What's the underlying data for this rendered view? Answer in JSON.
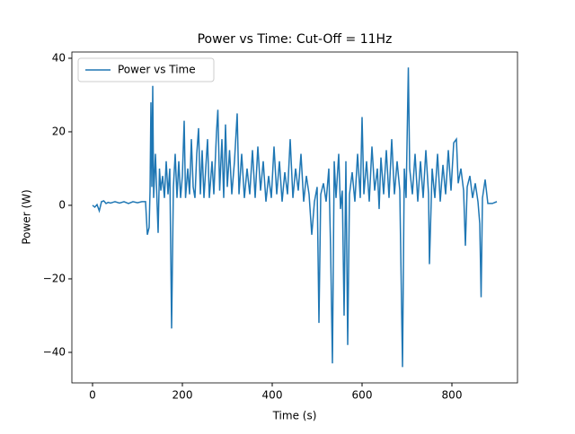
{
  "chart_data": {
    "type": "line",
    "title": "Power vs Time: Cut-Off = 11Hz",
    "x_label": "Time (s)",
    "y_label": "Power (W)",
    "xlim": [
      -46,
      946
    ],
    "ylim": [
      -48.3,
      41.7
    ],
    "xticks": [
      0,
      200,
      400,
      600,
      800
    ],
    "yticks": [
      {
        "value": -40,
        "label": "−40"
      },
      {
        "value": -20,
        "label": "−20"
      },
      0,
      20,
      40
    ],
    "legend": "upper left",
    "grid": false,
    "x": [
      0,
      5,
      10,
      15,
      20,
      25,
      30,
      35,
      40,
      50,
      60,
      70,
      80,
      90,
      100,
      110,
      118,
      122,
      126,
      128,
      130,
      132,
      134,
      136,
      140,
      143,
      146,
      149,
      152,
      156,
      160,
      164,
      168,
      172,
      176,
      180,
      184,
      188,
      192,
      196,
      200,
      204,
      207,
      212,
      216,
      220,
      224,
      228,
      232,
      236,
      240,
      244,
      248,
      252,
      256,
      260,
      266,
      270,
      276,
      279,
      283,
      288,
      292,
      296,
      300,
      305,
      310,
      316,
      322,
      326,
      332,
      338,
      344,
      350,
      356,
      362,
      368,
      374,
      380,
      386,
      392,
      398,
      404,
      410,
      416,
      422,
      428,
      434,
      440,
      446,
      452,
      458,
      464,
      470,
      476,
      482,
      488,
      494,
      500,
      504,
      508,
      514,
      520,
      526,
      530,
      534,
      538,
      542,
      548,
      552,
      556,
      560,
      564,
      568,
      572,
      578,
      584,
      590,
      596,
      600,
      604,
      610,
      616,
      622,
      628,
      634,
      638,
      642,
      648,
      654,
      660,
      666,
      672,
      678,
      684,
      690,
      694,
      698,
      703,
      706,
      712,
      718,
      724,
      730,
      736,
      742,
      748,
      750,
      756,
      762,
      768,
      774,
      780,
      786,
      792,
      798,
      804,
      810,
      814,
      820,
      826,
      830,
      834,
      840,
      846,
      852,
      858,
      862,
      865,
      868,
      874,
      880,
      890,
      900
    ],
    "series": [
      {
        "name": "Power vs Time",
        "color": "#1f77b4",
        "values": [
          0,
          -0.5,
          0.2,
          -1.5,
          1,
          1.2,
          0.5,
          0.8,
          0.6,
          1,
          0.6,
          1,
          0.5,
          1,
          0.7,
          1,
          1,
          -8,
          -6,
          4,
          28,
          5,
          32.5,
          2,
          14,
          3,
          -7.5,
          10,
          4,
          8,
          2,
          12,
          3,
          10,
          -33.5,
          5,
          14,
          2,
          12,
          2,
          8,
          23,
          2,
          10,
          3,
          18,
          5,
          2,
          14,
          21,
          3,
          15,
          2,
          10,
          18,
          2,
          12,
          3,
          20,
          26,
          4,
          18,
          2,
          22,
          5,
          15,
          3,
          12,
          25,
          3,
          14,
          2,
          10,
          3,
          15,
          2,
          16,
          4,
          12,
          1,
          8,
          2,
          16,
          3,
          12,
          1,
          9,
          3,
          18,
          2,
          10,
          4,
          14,
          1,
          8,
          3,
          -8,
          1,
          5,
          -32,
          3,
          6,
          1,
          10,
          -12,
          -43,
          12,
          2,
          14,
          -1,
          4,
          -30,
          12,
          -38,
          3,
          9,
          1,
          14,
          2,
          24,
          3,
          12,
          1,
          16,
          4,
          10,
          -1,
          13,
          3,
          15,
          2,
          18,
          3,
          12,
          4,
          -44,
          10,
          2,
          37.5,
          10,
          3,
          14,
          1,
          12,
          2,
          15,
          3,
          -16,
          10,
          2,
          14,
          1,
          11,
          3,
          15,
          4,
          17,
          18,
          6,
          10,
          4,
          -11,
          5,
          8,
          2,
          6,
          1,
          -5,
          -25,
          2,
          7,
          0.5,
          0.5,
          1
        ]
      }
    ]
  }
}
